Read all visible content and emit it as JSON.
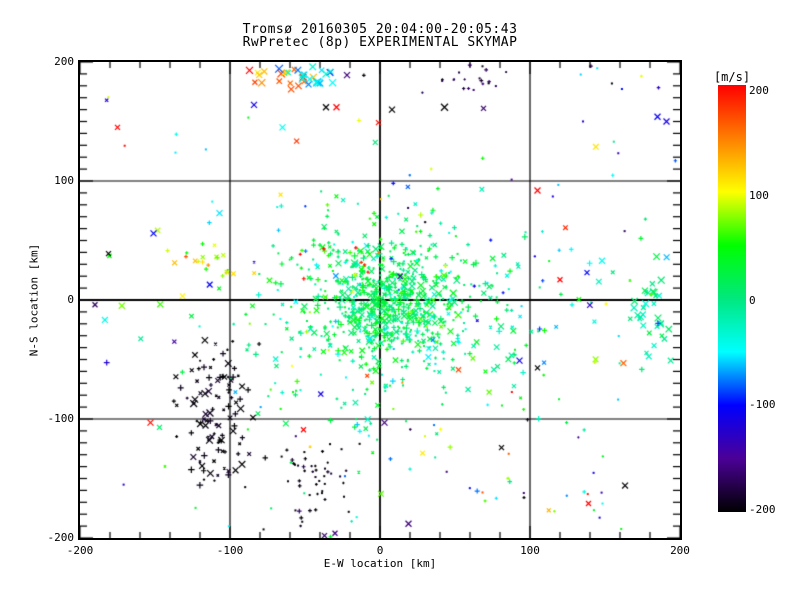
{
  "title": {
    "line1": "Tromsø 20160305 20:04:00-20:05:43",
    "line2": "RwPretec (8p) EXPERIMENTAL SKYMAP"
  },
  "axes": {
    "xlabel": "E-W location [km]",
    "ylabel": "N-S location [km]",
    "xticks": [
      -200,
      -100,
      0,
      100,
      200
    ],
    "yticks": [
      200,
      100,
      0,
      -100,
      -200
    ]
  },
  "colorbar": {
    "label": "[m/s]",
    "ticks": [
      200,
      100,
      0,
      -100,
      -200
    ]
  },
  "chart_data": {
    "type": "scatter",
    "title": "Tromsø 20160305 20:04:00-20:05:43 / RwPretec (8p) EXPERIMENTAL SKYMAP",
    "xlabel": "E-W location [km]",
    "ylabel": "N-S location [km]",
    "xlim": [
      -200,
      200
    ],
    "ylim": [
      -200,
      200
    ],
    "x_minor_step": 20,
    "y_minor_step": 10,
    "grid": true,
    "grid_values": [
      -100,
      0,
      100
    ],
    "background": "#ffffff",
    "axis_color": "#000000",
    "color_scale": {
      "label": "[m/s]",
      "min": -200,
      "max": 200,
      "ticks": [
        200,
        100,
        0,
        -100,
        -200
      ],
      "stops": [
        {
          "v": -200,
          "color": "#000000"
        },
        {
          "v": -150,
          "color": "#4B0096"
        },
        {
          "v": -100,
          "color": "#0000FF"
        },
        {
          "v": -50,
          "color": "#00FFFF"
        },
        {
          "v": 0,
          "color": "#00E87E"
        },
        {
          "v": 50,
          "color": "#00FF00"
        },
        {
          "v": 100,
          "color": "#FFFF00"
        },
        {
          "v": 150,
          "color": "#FF7F00"
        },
        {
          "v": 200,
          "color": "#FF0000"
        }
      ]
    },
    "seed": 42,
    "n_points_estimate": 1330,
    "clusters": [
      {
        "name": "core-dense",
        "dist": "gauss",
        "cx": 6,
        "cy": -3,
        "sx": 22,
        "sy": 22,
        "n": 420,
        "v_mean": 15,
        "v_sigma": 20,
        "symbols": [
          "x",
          "+",
          "dot"
        ],
        "size_min": 3,
        "size_max": 7
      },
      {
        "name": "core-mid",
        "dist": "gauss",
        "cx": 8,
        "cy": -8,
        "sx": 45,
        "sy": 40,
        "n": 330,
        "v_mean": 8,
        "v_sigma": 30,
        "symbols": [
          "x",
          "+",
          "dot"
        ],
        "size_min": 3,
        "size_max": 6
      },
      {
        "name": "core-halo",
        "dist": "gauss",
        "cx": 0,
        "cy": -10,
        "sx": 75,
        "sy": 65,
        "n": 120,
        "v_mean": 0,
        "v_sigma": 45,
        "symbols": [
          "+",
          "dot",
          "x"
        ],
        "size_min": 2,
        "size_max": 5
      },
      {
        "name": "top-orange",
        "dist": "gauss",
        "cx": -70,
        "cy": 189,
        "sx": 9,
        "sy": 4,
        "n": 16,
        "v_mean": 150,
        "v_sigma": 35,
        "symbols": [
          "x"
        ],
        "size_min": 5,
        "size_max": 8
      },
      {
        "name": "top-cyan",
        "dist": "gauss",
        "cx": -45,
        "cy": 187,
        "sx": 9,
        "sy": 5,
        "n": 18,
        "v_mean": -40,
        "v_sigma": 25,
        "symbols": [
          "x"
        ],
        "size_min": 5,
        "size_max": 8
      },
      {
        "name": "top-dark-purple",
        "dist": "gauss",
        "cx": 57,
        "cy": 184,
        "sx": 16,
        "sy": 6,
        "n": 20,
        "v_mean": -175,
        "v_sigma": 12,
        "symbols": [
          "+",
          "dot"
        ],
        "size_min": 2,
        "size_max": 4
      },
      {
        "name": "upper-right-blue",
        "dist": "uniform",
        "x_min": 5,
        "x_max": 120,
        "y_min": 5,
        "y_max": 115,
        "n": 14,
        "v_mean": -85,
        "v_sigma": 45,
        "symbols": [
          "+",
          "dot"
        ],
        "size_min": 2,
        "size_max": 4
      },
      {
        "name": "right-green",
        "dist": "gauss",
        "cx": 182,
        "cy": -12,
        "sx": 7,
        "sy": 17,
        "n": 32,
        "v_mean": -8,
        "v_sigma": 16,
        "symbols": [
          "x"
        ],
        "size_min": 4,
        "size_max": 7
      },
      {
        "name": "left-yellow",
        "dist": "gauss",
        "cx": -118,
        "cy": 32,
        "sx": 12,
        "sy": 7,
        "n": 18,
        "v_mean": 95,
        "v_sigma": 20,
        "symbols": [
          "+",
          "x"
        ],
        "size_min": 3,
        "size_max": 5
      },
      {
        "name": "midleft-green",
        "dist": "uniform",
        "x_min": -70,
        "x_max": 5,
        "y_min": 12,
        "y_max": 52,
        "n": 26,
        "v_mean": 25,
        "v_sigma": 25,
        "symbols": [
          "+"
        ],
        "size_min": 3,
        "size_max": 5
      },
      {
        "name": "midleft-red",
        "dist": "uniform",
        "x_min": -55,
        "x_max": 10,
        "y_min": 15,
        "y_max": 45,
        "n": 7,
        "v_mean": 195,
        "v_sigma": 8,
        "symbols": [
          "+"
        ],
        "size_min": 3,
        "size_max": 4
      },
      {
        "name": "black-left",
        "dist": "gauss",
        "cx": -110,
        "cy": -95,
        "sx": 13,
        "sy": 32,
        "n": 105,
        "v_mean": -196,
        "v_sigma": 6,
        "symbols": [
          "x",
          "+"
        ],
        "size_min": 2,
        "size_max": 7
      },
      {
        "name": "bottom-black",
        "dist": "gauss",
        "cx": -42,
        "cy": -152,
        "sx": 15,
        "sy": 21,
        "n": 48,
        "v_mean": -196,
        "v_sigma": 6,
        "symbols": [
          "+",
          "dot"
        ],
        "size_min": 2,
        "size_max": 4
      },
      {
        "name": "bottom-right-mix",
        "dist": "uniform",
        "x_min": 5,
        "x_max": 155,
        "y_min": -195,
        "y_max": -100,
        "n": 22,
        "v_dist": "uniform",
        "v_min": -200,
        "v_max": 200,
        "symbols": [
          "+",
          "dot"
        ],
        "size_min": 2,
        "size_max": 4
      },
      {
        "name": "right-mid",
        "dist": "uniform",
        "x_min": 55,
        "x_max": 200,
        "y_min": -60,
        "y_max": 60,
        "n": 20,
        "v_mean": -25,
        "v_sigma": 55,
        "symbols": [
          "x",
          "+"
        ],
        "size_min": 3,
        "size_max": 6
      },
      {
        "name": "top-right-sparse",
        "dist": "uniform",
        "x_min": 115,
        "x_max": 200,
        "y_min": 95,
        "y_max": 198,
        "n": 9,
        "v_mean": -120,
        "v_sigma": 60,
        "symbols": [
          "+",
          "dot"
        ],
        "size_min": 2,
        "size_max": 4
      },
      {
        "name": "left-sparse",
        "dist": "uniform",
        "x_min": -195,
        "x_max": -90,
        "y_min": -40,
        "y_max": 60,
        "n": 8,
        "v_dist": "uniform",
        "v_min": -200,
        "v_max": 200,
        "symbols": [
          "x"
        ],
        "size_min": 4,
        "size_max": 6
      },
      {
        "name": "scatter-all",
        "dist": "uniform",
        "x_min": -195,
        "x_max": 195,
        "y_min": -195,
        "y_max": 195,
        "n": 70,
        "v_dist": "uniform",
        "v_min": -200,
        "v_max": 200,
        "symbols": [
          "x",
          "+",
          "dot"
        ],
        "size_min": 2,
        "size_max": 6
      }
    ],
    "feature_points": [
      {
        "x": -87,
        "y": 193,
        "v": 200,
        "sym": "x",
        "size": 7
      },
      {
        "x": -84,
        "y": 164,
        "v": -110,
        "sym": "x",
        "size": 6
      },
      {
        "x": -22,
        "y": 189,
        "v": -160,
        "sym": "x",
        "size": 6
      },
      {
        "x": -36,
        "y": 162,
        "v": -200,
        "sym": "x",
        "size": 6
      },
      {
        "x": -29,
        "y": 162,
        "v": 200,
        "sym": "x",
        "size": 6
      },
      {
        "x": -1,
        "y": 149,
        "v": 195,
        "sym": "x",
        "size": 5
      },
      {
        "x": 8,
        "y": 160,
        "v": -200,
        "sym": "x",
        "size": 6
      },
      {
        "x": 43,
        "y": 162,
        "v": -200,
        "sym": "x",
        "size": 7
      },
      {
        "x": 69,
        "y": 161,
        "v": -165,
        "sym": "x",
        "size": 5
      },
      {
        "x": 105,
        "y": 92,
        "v": 200,
        "sym": "x",
        "size": 6
      },
      {
        "x": 185,
        "y": 154,
        "v": -105,
        "sym": "x",
        "size": 6
      },
      {
        "x": 191,
        "y": 150,
        "v": -115,
        "sym": "x",
        "size": 6
      },
      {
        "x": -151,
        "y": 56,
        "v": -100,
        "sym": "x",
        "size": 6
      },
      {
        "x": -181,
        "y": 39,
        "v": -200,
        "sym": "x",
        "size": 5
      },
      {
        "x": -175,
        "y": 145,
        "v": 200,
        "sym": "x",
        "size": 5
      },
      {
        "x": -107,
        "y": 73,
        "v": -55,
        "sym": "x",
        "size": 6
      },
      {
        "x": -153,
        "y": -103,
        "v": 195,
        "sym": "x",
        "size": 6
      },
      {
        "x": -147,
        "y": -107,
        "v": 10,
        "sym": "x",
        "size": 5
      },
      {
        "x": 81,
        "y": -124,
        "v": -200,
        "sym": "x",
        "size": 5
      },
      {
        "x": 139,
        "y": -171,
        "v": 200,
        "sym": "x",
        "size": 5
      },
      {
        "x": 96,
        "y": -166,
        "v": -200,
        "sym": "+",
        "size": 3
      },
      {
        "x": 3,
        "y": -103,
        "v": -160,
        "sym": "x",
        "size": 6
      },
      {
        "x": 19,
        "y": -188,
        "v": -160,
        "sym": "x",
        "size": 6
      },
      {
        "x": -51,
        "y": -109,
        "v": 200,
        "sym": "x",
        "size": 5
      },
      {
        "x": 93,
        "y": -51,
        "v": -110,
        "sym": "x",
        "size": 6
      },
      {
        "x": 148,
        "y": 33,
        "v": -45,
        "sym": "x",
        "size": 6
      },
      {
        "x": 138,
        "y": 23,
        "v": -100,
        "sym": "x",
        "size": 5
      },
      {
        "x": -190,
        "y": -4,
        "v": -170,
        "sym": "x",
        "size": 5
      },
      {
        "x": -30,
        "y": -196,
        "v": -160,
        "sym": "x",
        "size": 5
      },
      {
        "x": -37,
        "y": -198,
        "v": -165,
        "sym": "x",
        "size": 5
      },
      {
        "x": -33,
        "y": -199,
        "v": 30,
        "sym": "+",
        "size": 4
      },
      {
        "x": -65,
        "y": 145,
        "v": -45,
        "sym": "x",
        "size": 6
      },
      {
        "x": 105,
        "y": -57,
        "v": -200,
        "sym": "x",
        "size": 5
      },
      {
        "x": 120,
        "y": 17,
        "v": 200,
        "sym": "x",
        "size": 5
      }
    ]
  }
}
